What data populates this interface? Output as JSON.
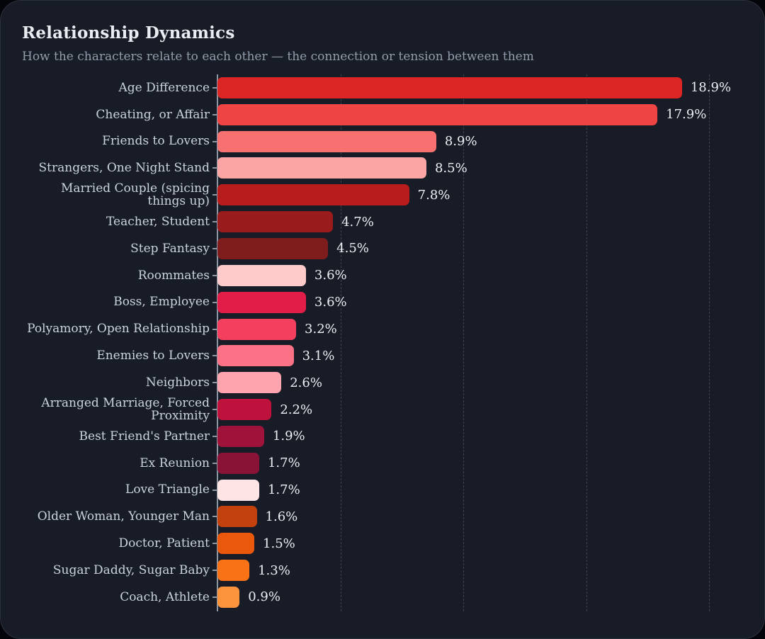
{
  "card": {
    "title": "Relationship Dynamics",
    "subtitle": "How the characters relate to each other — the connection or tension between them"
  },
  "chart_data": {
    "type": "bar",
    "orientation": "horizontal",
    "title": "Relationship Dynamics",
    "subtitle": "How the characters relate to each other — the connection or tension between them",
    "xlabel": "",
    "ylabel": "",
    "xlim": [
      0,
      21.2
    ],
    "grid": "vertical-dashed",
    "gridline_values": [
      5,
      10,
      15,
      20
    ],
    "value_suffix": "%",
    "legend": "none",
    "categories": [
      "Age Difference",
      "Cheating, or Affair",
      "Friends to Lovers",
      "Strangers, One Night Stand",
      "Married Couple (spicing things up)",
      "Teacher, Student",
      "Step Fantasy",
      "Roommates",
      "Boss, Employee",
      "Polyamory, Open Relationship",
      "Enemies to Lovers",
      "Neighbors",
      "Arranged Marriage, Forced Proximity",
      "Best Friend's Partner",
      "Ex Reunion",
      "Love Triangle",
      "Older Woman, Younger Man",
      "Doctor, Patient",
      "Sugar Daddy, Sugar Baby",
      "Coach, Athlete"
    ],
    "values": [
      18.9,
      17.9,
      8.9,
      8.5,
      7.8,
      4.7,
      4.5,
      3.6,
      3.6,
      3.2,
      3.1,
      2.6,
      2.2,
      1.9,
      1.7,
      1.7,
      1.6,
      1.5,
      1.3,
      0.9
    ],
    "value_labels": [
      "18.9%",
      "17.9%",
      "8.9%",
      "8.5%",
      "7.8%",
      "4.7%",
      "4.5%",
      "3.6%",
      "3.6%",
      "3.2%",
      "3.1%",
      "2.6%",
      "2.2%",
      "1.9%",
      "1.7%",
      "1.7%",
      "1.6%",
      "1.5%",
      "1.3%",
      "0.9%"
    ],
    "bar_colors": [
      "#dc2626",
      "#ef4444",
      "#f87171",
      "#fca5a5",
      "#b91c1c",
      "#991b1b",
      "#7f1d1d",
      "#fecaca",
      "#e11d48",
      "#f43f5e",
      "#fb7185",
      "#fda4af",
      "#be123c",
      "#9f1239",
      "#881337",
      "#ffe4e6",
      "#c2410c",
      "#ea580c",
      "#f97316",
      "#fb923c"
    ]
  },
  "colors": {
    "page_bg": "#04050a",
    "card_bg": "#181c26",
    "card_border": "#2a313d",
    "title": "#e9edf2",
    "subtitle": "#939cab",
    "category_label": "#ccd3dd",
    "value_label": "#eceff3",
    "axis": "#8e96a3",
    "gridline": "#3d434f"
  }
}
